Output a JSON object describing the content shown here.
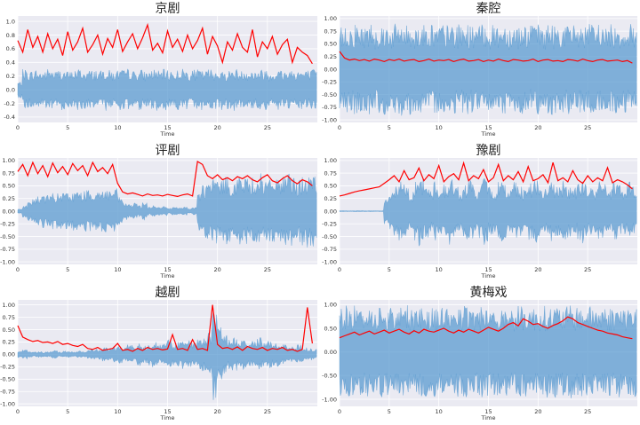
{
  "palette": {
    "waveform": "#5b9bd0",
    "envelope": "#ff0000",
    "plot_bg": "#eaeaf2",
    "grid": "#ffffff"
  },
  "chart_data": [
    {
      "type": "line",
      "title": "京剧",
      "xlabel": "Time",
      "ylabel": "",
      "xlim": [
        0,
        30
      ],
      "ylim": [
        -0.48,
        1.08
      ],
      "xticks": [
        0,
        5,
        10,
        15,
        20,
        25
      ],
      "yticks": [
        -0.4,
        -0.2,
        0.0,
        0.2,
        0.4,
        0.6,
        0.8,
        1.0
      ],
      "grid": true,
      "series": [
        {
          "kind": "waveform",
          "x_step": 0.5,
          "values": [
            0.12,
            0.3,
            0.28,
            0.3,
            0.27,
            0.29,
            0.31,
            0.28,
            0.3,
            0.29,
            0.27,
            0.3,
            0.31,
            0.28,
            0.29,
            0.3,
            0.28,
            0.31,
            0.29,
            0.27,
            0.3,
            0.29,
            0.31,
            0.28,
            0.3,
            0.27,
            0.29,
            0.31,
            0.28,
            0.3,
            0.29,
            0.28,
            0.3,
            0.31,
            0.27,
            0.29,
            0.3,
            0.28,
            0.31,
            0.29,
            0.3,
            0.27,
            0.29,
            0.31,
            0.28,
            0.3,
            0.29,
            0.28,
            0.3,
            0.31,
            0.27,
            0.29,
            0.3,
            0.28,
            0.31,
            0.29,
            0.3,
            0.28,
            0.29,
            0.3
          ]
        },
        {
          "kind": "envelope",
          "x_step": 0.5,
          "values": [
            0.72,
            0.55,
            0.88,
            0.62,
            0.78,
            0.55,
            0.82,
            0.6,
            0.74,
            0.5,
            0.85,
            0.58,
            0.7,
            0.9,
            0.55,
            0.66,
            0.8,
            0.52,
            0.75,
            0.62,
            0.88,
            0.56,
            0.7,
            0.82,
            0.6,
            0.76,
            0.95,
            0.58,
            0.68,
            0.54,
            0.86,
            0.62,
            0.74,
            0.56,
            0.8,
            0.6,
            0.72,
            0.9,
            0.52,
            0.78,
            0.64,
            0.4,
            0.7,
            0.58,
            0.82,
            0.62,
            0.55,
            0.88,
            0.48,
            0.7,
            0.6,
            0.78,
            0.52,
            0.66,
            0.74,
            0.4,
            0.62,
            0.55,
            0.5,
            0.38
          ]
        }
      ]
    },
    {
      "type": "line",
      "title": "秦腔",
      "xlabel": "Time",
      "ylabel": "",
      "xlim": [
        0,
        30
      ],
      "ylim": [
        -1.05,
        1.05
      ],
      "xticks": [
        0,
        5,
        10,
        15,
        20,
        25
      ],
      "yticks": [
        -1.0,
        -0.75,
        -0.5,
        -0.25,
        0.0,
        0.25,
        0.5,
        0.75,
        1.0
      ],
      "grid": true,
      "series": [
        {
          "kind": "waveform",
          "x_step": 0.5,
          "values": [
            0.85,
            0.9,
            0.88,
            0.92,
            0.86,
            0.9,
            0.93,
            0.87,
            0.89,
            0.91,
            0.86,
            0.9,
            0.92,
            0.88,
            0.9,
            0.87,
            0.91,
            0.89,
            0.93,
            0.86,
            0.9,
            0.88,
            0.92,
            0.87,
            0.89,
            0.91,
            0.86,
            0.9,
            0.88,
            0.92,
            0.87,
            0.9,
            0.89,
            0.93,
            0.86,
            0.91,
            0.88,
            0.9,
            0.87,
            0.92,
            0.89,
            0.86,
            0.9,
            0.88,
            0.91,
            0.87,
            0.9,
            0.89,
            0.92,
            0.86,
            0.9,
            0.88,
            0.91,
            0.87,
            0.89,
            0.9,
            0.88,
            0.86,
            0.9,
            0.88
          ]
        },
        {
          "kind": "envelope",
          "x_step": 0.5,
          "values": [
            0.35,
            0.22,
            0.18,
            0.2,
            0.17,
            0.19,
            0.16,
            0.2,
            0.18,
            0.15,
            0.19,
            0.17,
            0.2,
            0.16,
            0.18,
            0.19,
            0.15,
            0.17,
            0.2,
            0.16,
            0.18,
            0.17,
            0.19,
            0.15,
            0.18,
            0.2,
            0.16,
            0.17,
            0.19,
            0.15,
            0.18,
            0.16,
            0.2,
            0.17,
            0.15,
            0.19,
            0.18,
            0.16,
            0.17,
            0.2,
            0.15,
            0.18,
            0.19,
            0.16,
            0.17,
            0.15,
            0.19,
            0.18,
            0.16,
            0.2,
            0.17,
            0.15,
            0.18,
            0.19,
            0.16,
            0.17,
            0.18,
            0.15,
            0.17,
            0.12
          ]
        }
      ]
    },
    {
      "type": "line",
      "title": "评剧",
      "xlabel": "Time",
      "ylabel": "",
      "xlim": [
        0,
        30
      ],
      "ylim": [
        -1.05,
        1.05
      ],
      "xticks": [
        0,
        5,
        10,
        15,
        20,
        25
      ],
      "yticks": [
        -1.0,
        -0.75,
        -0.5,
        -0.25,
        0.0,
        0.25,
        0.5,
        0.75,
        1.0
      ],
      "grid": true,
      "series": [
        {
          "kind": "waveform",
          "x_step": 0.5,
          "values": [
            0.05,
            0.12,
            0.2,
            0.26,
            0.3,
            0.33,
            0.34,
            0.36,
            0.35,
            0.38,
            0.37,
            0.4,
            0.39,
            0.42,
            0.41,
            0.43,
            0.42,
            0.44,
            0.43,
            0.45,
            0.3,
            0.18,
            0.14,
            0.16,
            0.12,
            0.18,
            0.1,
            0.12,
            0.08,
            0.1,
            0.06,
            0.08,
            0.07,
            0.09,
            0.06,
            0.08,
            0.4,
            0.55,
            0.6,
            0.66,
            0.62,
            0.7,
            0.65,
            0.6,
            0.72,
            0.68,
            0.64,
            0.7,
            0.75,
            0.66,
            0.62,
            0.7,
            0.72,
            0.68,
            0.74,
            0.7,
            0.64,
            0.68,
            0.72,
            0.7
          ]
        },
        {
          "kind": "envelope",
          "x_step": 0.5,
          "values": [
            0.78,
            0.92,
            0.7,
            0.96,
            0.74,
            0.9,
            0.68,
            0.95,
            0.76,
            0.88,
            0.72,
            0.94,
            0.8,
            0.9,
            0.7,
            0.96,
            0.78,
            0.86,
            0.74,
            0.92,
            0.55,
            0.38,
            0.34,
            0.36,
            0.33,
            0.3,
            0.34,
            0.31,
            0.32,
            0.3,
            0.33,
            0.31,
            0.29,
            0.32,
            0.34,
            0.3,
            0.98,
            0.92,
            0.7,
            0.64,
            0.72,
            0.62,
            0.66,
            0.6,
            0.68,
            0.64,
            0.7,
            0.62,
            0.58,
            0.66,
            0.72,
            0.6,
            0.56,
            0.64,
            0.7,
            0.6,
            0.54,
            0.62,
            0.58,
            0.5
          ]
        }
      ]
    },
    {
      "type": "line",
      "title": "豫剧",
      "xlabel": "Time",
      "ylabel": "",
      "xlim": [
        0,
        30
      ],
      "ylim": [
        -1.05,
        1.05
      ],
      "xticks": [
        0,
        5,
        10,
        15,
        20,
        25
      ],
      "yticks": [
        -1.0,
        -0.75,
        -0.5,
        -0.25,
        0.0,
        0.25,
        0.5,
        0.75,
        1.0
      ],
      "grid": true,
      "series": [
        {
          "kind": "waveform",
          "x_step": 0.5,
          "values": [
            0.01,
            0.01,
            0.01,
            0.01,
            0.01,
            0.01,
            0.01,
            0.01,
            0.01,
            0.3,
            0.45,
            0.5,
            0.62,
            0.55,
            0.4,
            0.58,
            0.7,
            0.52,
            0.45,
            0.6,
            0.48,
            0.55,
            0.66,
            0.5,
            0.42,
            0.58,
            0.62,
            0.48,
            0.55,
            0.7,
            0.5,
            0.44,
            0.6,
            0.56,
            0.48,
            0.62,
            0.52,
            0.46,
            0.58,
            0.66,
            0.5,
            0.44,
            0.6,
            0.55,
            0.48,
            0.62,
            0.52,
            0.46,
            0.58,
            0.64,
            0.5,
            0.45,
            0.6,
            0.55,
            0.48,
            0.62,
            0.52,
            0.46,
            0.58,
            0.5
          ]
        },
        {
          "kind": "envelope",
          "x_step": 0.5,
          "values": [
            0.3,
            0.32,
            0.35,
            0.38,
            0.4,
            0.42,
            0.44,
            0.46,
            0.48,
            0.55,
            0.62,
            0.7,
            0.58,
            0.8,
            0.62,
            0.66,
            0.85,
            0.6,
            0.72,
            0.64,
            0.9,
            0.58,
            0.68,
            0.74,
            0.62,
            0.95,
            0.6,
            0.7,
            0.64,
            0.82,
            0.58,
            0.66,
            0.92,
            0.6,
            0.7,
            0.62,
            0.78,
            0.58,
            0.88,
            0.6,
            0.64,
            0.72,
            0.56,
            0.96,
            0.6,
            0.66,
            0.58,
            0.8,
            0.62,
            0.55,
            0.7,
            0.58,
            0.66,
            0.6,
            0.86,
            0.56,
            0.62,
            0.58,
            0.52,
            0.44
          ]
        }
      ]
    },
    {
      "type": "line",
      "title": "越剧",
      "xlabel": "Time",
      "ylabel": "",
      "xlim": [
        0,
        30
      ],
      "ylim": [
        -1.05,
        1.1
      ],
      "xticks": [
        0,
        5,
        10,
        15,
        20,
        25
      ],
      "yticks": [
        -1.0,
        -0.75,
        -0.5,
        -0.25,
        0.0,
        0.25,
        0.5,
        0.75,
        1.0
      ],
      "grid": true,
      "series": [
        {
          "kind": "waveform",
          "x_step": 0.5,
          "values": [
            0.08,
            0.1,
            0.06,
            0.05,
            0.07,
            0.05,
            0.06,
            0.08,
            0.05,
            0.07,
            0.06,
            0.05,
            0.08,
            0.06,
            0.1,
            0.12,
            0.1,
            0.14,
            0.12,
            0.16,
            0.18,
            0.14,
            0.2,
            0.16,
            0.24,
            0.18,
            0.22,
            0.26,
            0.2,
            0.24,
            0.3,
            0.22,
            0.26,
            0.32,
            0.28,
            0.24,
            0.3,
            0.34,
            0.45,
            0.95,
            0.6,
            0.4,
            0.3,
            0.36,
            0.28,
            0.32,
            0.26,
            0.3,
            0.34,
            0.24,
            0.28,
            0.22,
            0.26,
            0.2,
            0.18,
            0.16,
            0.2,
            0.14,
            0.12,
            0.1
          ]
        },
        {
          "kind": "envelope",
          "x_step": 0.5,
          "values": [
            0.58,
            0.35,
            0.3,
            0.26,
            0.28,
            0.24,
            0.25,
            0.22,
            0.26,
            0.2,
            0.22,
            0.18,
            0.16,
            0.2,
            0.12,
            0.1,
            0.14,
            0.08,
            0.1,
            0.12,
            0.22,
            0.08,
            0.1,
            0.06,
            0.12,
            0.08,
            0.14,
            0.1,
            0.12,
            0.09,
            0.11,
            0.4,
            0.1,
            0.12,
            0.08,
            0.3,
            0.1,
            0.12,
            0.08,
            1.0,
            0.2,
            0.12,
            0.14,
            0.1,
            0.15,
            0.08,
            0.16,
            0.12,
            0.1,
            0.14,
            0.08,
            0.12,
            0.1,
            0.14,
            0.08,
            0.1,
            0.06,
            0.1,
            0.95,
            0.22
          ]
        }
      ]
    },
    {
      "type": "line",
      "title": "黄梅戏",
      "xlabel": "Time",
      "ylabel": "",
      "xlim": [
        0,
        30
      ],
      "ylim": [
        -1.15,
        1.1
      ],
      "xticks": [
        0,
        5,
        10,
        15,
        20,
        25
      ],
      "yticks": [
        -1.0,
        -0.5,
        0.0,
        0.5,
        1.0
      ],
      "grid": true,
      "series": [
        {
          "kind": "waveform",
          "x_step": 0.5,
          "values": [
            0.95,
            0.98,
            0.96,
            0.99,
            0.95,
            0.97,
            0.98,
            0.96,
            0.99,
            0.95,
            0.97,
            0.98,
            0.96,
            0.99,
            0.95,
            0.97,
            0.98,
            0.96,
            0.99,
            0.95,
            0.97,
            0.98,
            0.96,
            0.99,
            0.95,
            0.97,
            0.98,
            0.96,
            0.99,
            0.95,
            0.97,
            0.98,
            0.96,
            0.99,
            0.95,
            0.97,
            0.98,
            0.96,
            0.99,
            0.95,
            0.97,
            0.98,
            0.96,
            0.99,
            0.95,
            0.97,
            0.98,
            0.96,
            0.99,
            0.95,
            0.97,
            0.98,
            0.96,
            0.99,
            0.95,
            0.97,
            0.98,
            0.96,
            0.99,
            0.95
          ]
        },
        {
          "kind": "envelope",
          "x_step": 0.5,
          "values": [
            0.3,
            0.34,
            0.38,
            0.42,
            0.36,
            0.4,
            0.44,
            0.38,
            0.42,
            0.46,
            0.4,
            0.44,
            0.48,
            0.42,
            0.38,
            0.45,
            0.4,
            0.48,
            0.44,
            0.42,
            0.46,
            0.5,
            0.44,
            0.4,
            0.46,
            0.42,
            0.48,
            0.44,
            0.4,
            0.46,
            0.52,
            0.48,
            0.44,
            0.5,
            0.58,
            0.62,
            0.55,
            0.7,
            0.65,
            0.58,
            0.6,
            0.54,
            0.5,
            0.56,
            0.6,
            0.66,
            0.74,
            0.7,
            0.62,
            0.58,
            0.54,
            0.5,
            0.46,
            0.44,
            0.4,
            0.38,
            0.36,
            0.32,
            0.3,
            0.28
          ]
        }
      ]
    }
  ]
}
